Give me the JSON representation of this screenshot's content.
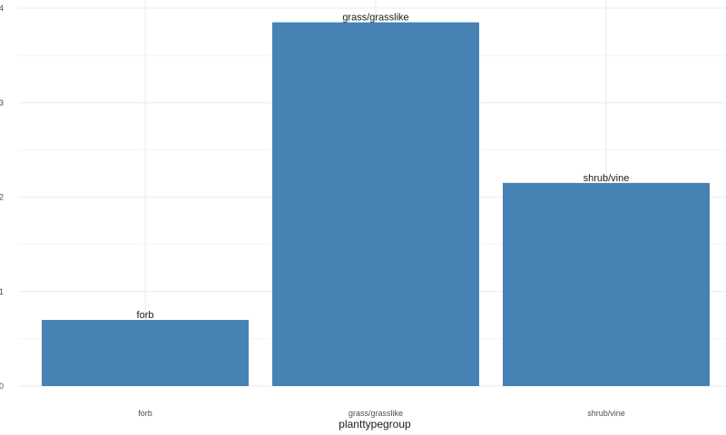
{
  "chart_data": {
    "type": "bar",
    "categories": [
      "forb",
      "grass/grasslike",
      "shrub/vine"
    ],
    "values": [
      0.7,
      3.85,
      2.15
    ],
    "bar_labels": [
      "forb",
      "grass/grasslike",
      "shrub/vine"
    ],
    "xlabel": "planttypegroup",
    "ylabel": "",
    "ylim": [
      0,
      4
    ],
    "y_ticks": [
      0,
      1,
      2,
      3,
      4
    ],
    "y_tick_labels": [
      "0",
      "1",
      "2",
      "3",
      "4"
    ],
    "grid": true,
    "legend": "none",
    "colors": {
      "bar": "#4682b4",
      "grid": "#ebebeb",
      "background": "#ffffff"
    }
  }
}
